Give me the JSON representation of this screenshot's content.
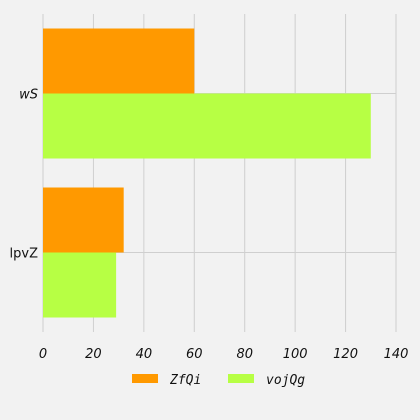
{
  "chart_data": {
    "type": "bar",
    "orientation": "horizontal",
    "categories": [
      "wS",
      "lpvZ"
    ],
    "category_label_italic": [
      true,
      false
    ],
    "series": [
      {
        "name": "ZfQi",
        "values": [
          60,
          32
        ],
        "color": "#ff9900"
      },
      {
        "name": "vojQg",
        "values": [
          130,
          29
        ],
        "color": "#b7ff44"
      }
    ],
    "xlim": [
      0,
      140
    ],
    "xticks": [
      0,
      20,
      40,
      60,
      80,
      100,
      120,
      140
    ],
    "grid": true,
    "legend_position": "bottom"
  }
}
